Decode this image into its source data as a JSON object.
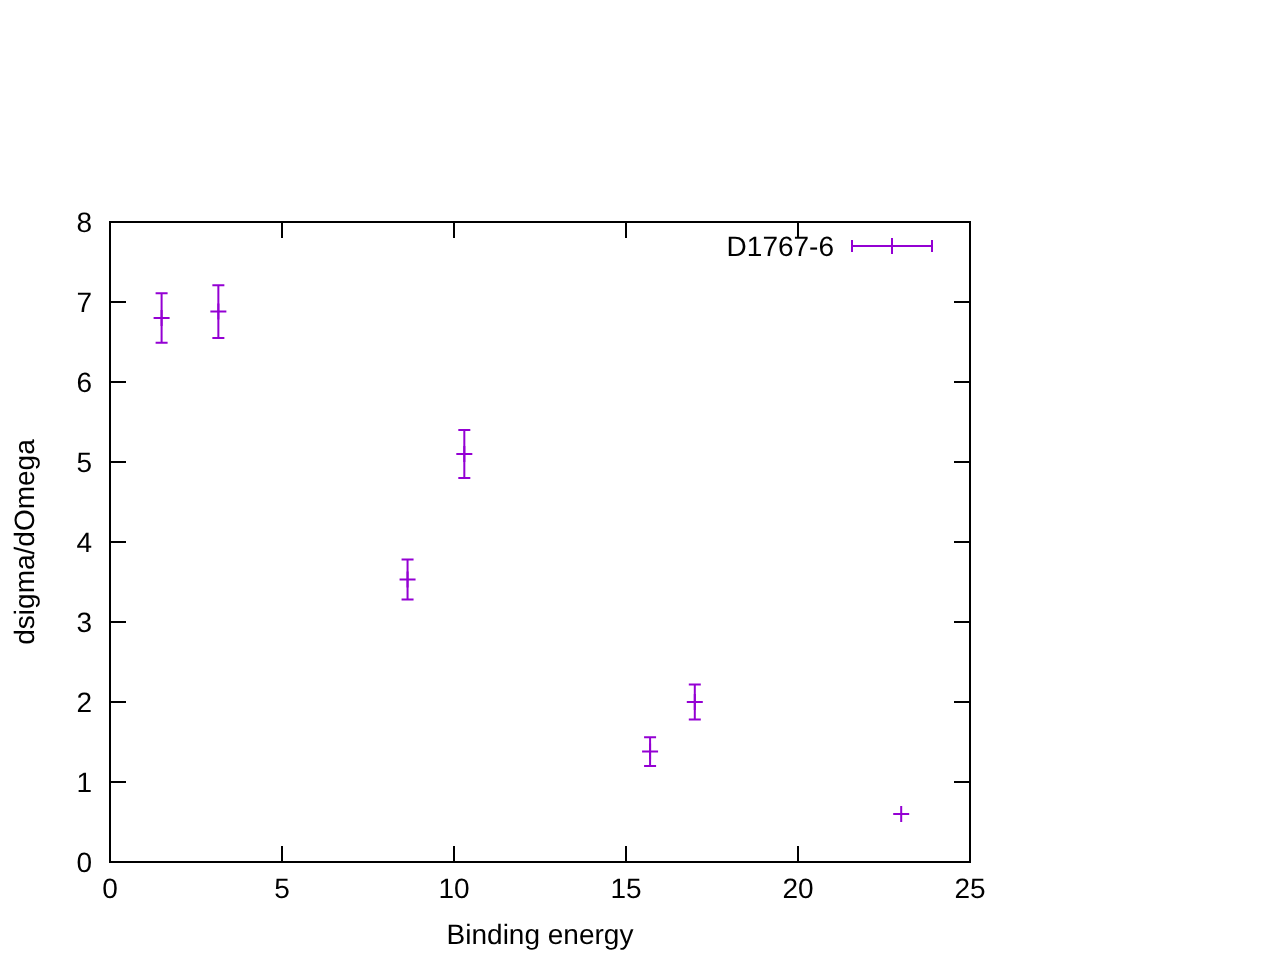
{
  "chart_data": {
    "type": "scatter",
    "xlabel": "Binding energy",
    "ylabel": "dsigma/dOmega",
    "x": [
      1.5,
      3.15,
      8.65,
      10.3,
      15.7,
      17.0,
      23.0
    ],
    "series": [
      {
        "name": "D1767-6",
        "color": "#9400d3",
        "values": [
          6.8,
          6.88,
          3.53,
          5.1,
          1.38,
          2.0,
          0.6
        ],
        "errors": [
          0.31,
          0.33,
          0.25,
          0.3,
          0.18,
          0.22,
          null
        ]
      }
    ],
    "xlim": [
      0,
      25
    ],
    "xticks": [
      0,
      5,
      10,
      15,
      20,
      25
    ],
    "ylim": [
      0,
      8
    ],
    "yticks": [
      0,
      1,
      2,
      3,
      4,
      5,
      6,
      7,
      8
    ],
    "grid": false,
    "legend": "top right",
    "marker": "cross"
  }
}
